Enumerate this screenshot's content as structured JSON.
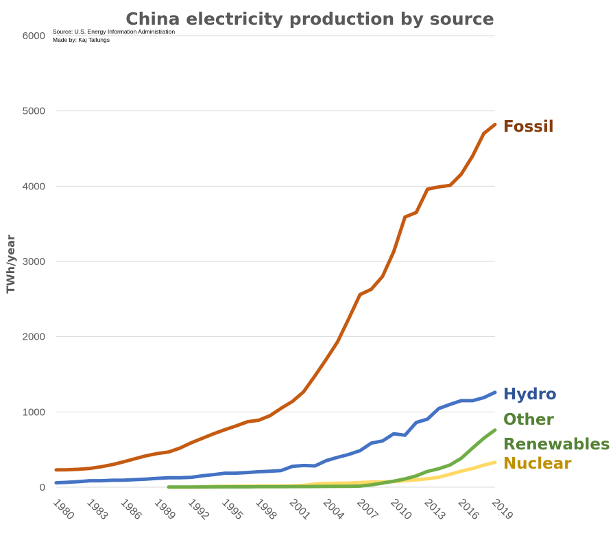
{
  "chart_data": {
    "type": "line",
    "title": "China electricity production by source",
    "source_lines": [
      "Source: U.S. Energy Information Administration",
      "Made by: Kaj Tallungs"
    ],
    "ylabel": "TWh/year",
    "xlabel": "",
    "ylim": [
      0,
      6000
    ],
    "yticks": [
      0,
      1000,
      2000,
      3000,
      4000,
      5000,
      6000
    ],
    "xlim": [
      1980,
      2019
    ],
    "xticks": [
      1980,
      1983,
      1986,
      1989,
      1992,
      1995,
      1998,
      2001,
      2004,
      2007,
      2010,
      2013,
      2016,
      2019
    ],
    "grid": true,
    "legend": "labels at line ends",
    "series": [
      {
        "name": "Fossil",
        "color": "#c55a11",
        "label_color": "#843c0c",
        "x": [
          1980,
          1981,
          1982,
          1983,
          1984,
          1985,
          1986,
          1987,
          1988,
          1989,
          1990,
          1991,
          1992,
          1993,
          1994,
          1995,
          1996,
          1997,
          1998,
          1999,
          2000,
          2001,
          2002,
          2003,
          2004,
          2005,
          2006,
          2007,
          2008,
          2009,
          2010,
          2011,
          2012,
          2013,
          2014,
          2015,
          2016,
          2017,
          2018,
          2019
        ],
        "values": [
          230,
          232,
          238,
          250,
          272,
          300,
          338,
          378,
          418,
          448,
          468,
          520,
          590,
          650,
          710,
          765,
          815,
          870,
          890,
          950,
          1050,
          1140,
          1270,
          1480,
          1700,
          1930,
          2240,
          2560,
          2630,
          2800,
          3130,
          3590,
          3650,
          3960,
          3990,
          4010,
          4160,
          4400,
          4700,
          4820
        ]
      },
      {
        "name": "Hydro",
        "color": "#4472c4",
        "label_color": "#2f5597",
        "x": [
          1980,
          1981,
          1982,
          1983,
          1984,
          1985,
          1986,
          1987,
          1988,
          1989,
          1990,
          1991,
          1992,
          1993,
          1994,
          1995,
          1996,
          1997,
          1998,
          1999,
          2000,
          2001,
          2002,
          2003,
          2004,
          2005,
          2006,
          2007,
          2008,
          2009,
          2010,
          2011,
          2012,
          2013,
          2014,
          2015,
          2016,
          2017,
          2018,
          2019
        ],
        "values": [
          58,
          65,
          74,
          86,
          86,
          92,
          94,
          100,
          108,
          118,
          126,
          125,
          131,
          151,
          167,
          186,
          187,
          195,
          205,
          212,
          222,
          277,
          288,
          283,
          353,
          397,
          435,
          485,
          585,
          615,
          710,
          690,
          860,
          905,
          1045,
          1100,
          1150,
          1150,
          1190,
          1260
        ]
      },
      {
        "name": "Other",
        "color": "#70ad47",
        "label_color": "#548235",
        "x": [
          1990,
          1991,
          1992,
          1993,
          1994,
          1995,
          1996,
          1997,
          1998,
          1999,
          2000,
          2001,
          2002,
          2003,
          2004,
          2005,
          2006,
          2007,
          2008,
          2009,
          2010,
          2011,
          2012,
          2013,
          2014,
          2015,
          2016,
          2017,
          2018,
          2019
        ],
        "values": [
          3,
          3,
          3,
          4,
          4,
          5,
          5,
          5,
          6,
          6,
          7,
          8,
          8,
          9,
          10,
          11,
          12,
          15,
          30,
          55,
          80,
          110,
          150,
          210,
          245,
          295,
          385,
          520,
          650,
          760
        ]
      },
      {
        "name": "Nuclear",
        "color": "#ffd966",
        "label_color": "#bf9000",
        "x": [
          1990,
          1991,
          1992,
          1993,
          1994,
          1995,
          1996,
          1997,
          1998,
          1999,
          2000,
          2001,
          2002,
          2003,
          2004,
          2005,
          2006,
          2007,
          2008,
          2009,
          2010,
          2011,
          2012,
          2013,
          2014,
          2015,
          2016,
          2017,
          2018,
          2019
        ],
        "values": [
          0,
          0,
          0,
          3,
          12,
          12,
          13,
          14,
          14,
          15,
          16,
          17,
          25,
          43,
          50,
          53,
          55,
          62,
          68,
          70,
          74,
          86,
          98,
          111,
          132,
          171,
          213,
          248,
          294,
          330
        ]
      }
    ],
    "series_labels": [
      "Fossil",
      "Hydro",
      "Other",
      "Renewables",
      "Nuclear"
    ]
  }
}
